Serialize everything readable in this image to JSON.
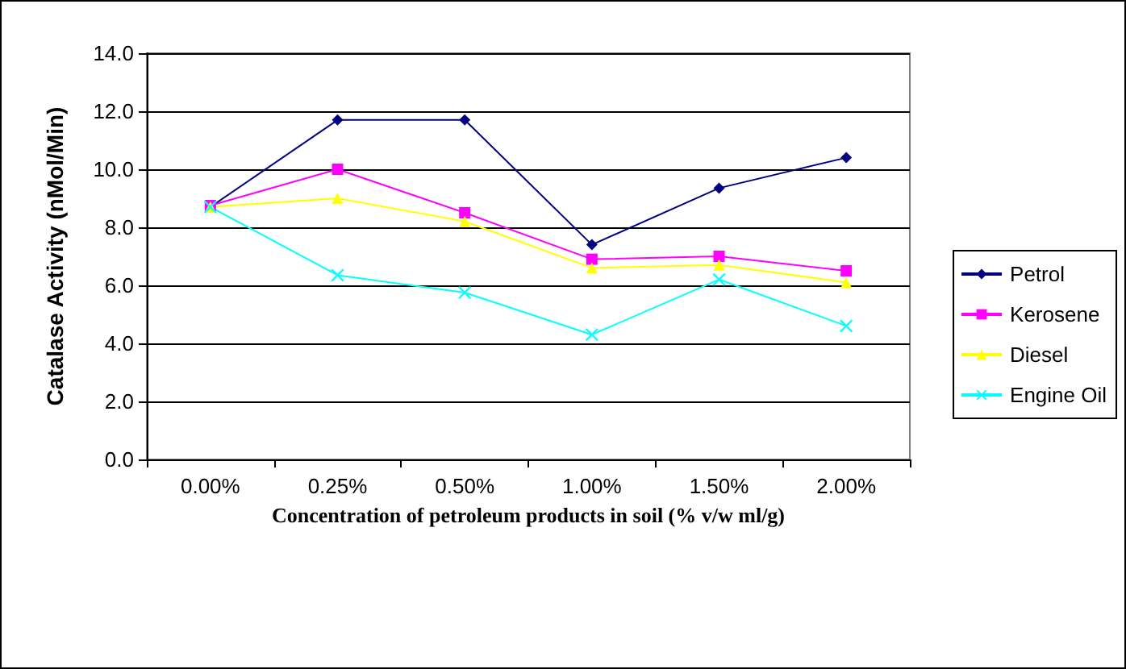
{
  "chart_data": {
    "type": "line",
    "xlabel": "Concentration of petroleum products in soil (% v/w ml/g)",
    "ylabel": "Catalase Activity (nMol/Min)",
    "categories": [
      "0.00%",
      "0.25%",
      "0.50%",
      "1.00%",
      "1.50%",
      "2.00%"
    ],
    "series": [
      {
        "name": "Petrol",
        "color": "#000080",
        "marker": "diamond",
        "values": [
          8.7,
          11.7,
          11.7,
          7.4,
          9.35,
          10.4
        ]
      },
      {
        "name": "Kerosene",
        "color": "#ff00ff",
        "marker": "square",
        "values": [
          8.75,
          10.0,
          8.5,
          6.9,
          7.0,
          6.5
        ]
      },
      {
        "name": "Diesel",
        "color": "#ffff00",
        "marker": "triangle",
        "values": [
          8.7,
          9.0,
          8.2,
          6.6,
          6.7,
          6.1
        ]
      },
      {
        "name": "Engine Oil",
        "color": "#00ffff",
        "marker": "cross",
        "values": [
          8.7,
          6.35,
          5.75,
          4.3,
          6.2,
          4.6
        ]
      }
    ],
    "ylim": [
      0,
      14
    ],
    "yticks": [
      {
        "value": 0,
        "label": "0.0"
      },
      {
        "value": 2,
        "label": "2.0"
      },
      {
        "value": 4,
        "label": "4.0"
      },
      {
        "value": 6,
        "label": "6.0"
      },
      {
        "value": 8,
        "label": "8.0"
      },
      {
        "value": 10,
        "label": "10.0"
      },
      {
        "value": 12,
        "label": "12.0"
      },
      {
        "value": 14,
        "label": "14.0"
      }
    ],
    "grid": "y",
    "legend": "right",
    "line_style": "solid"
  }
}
